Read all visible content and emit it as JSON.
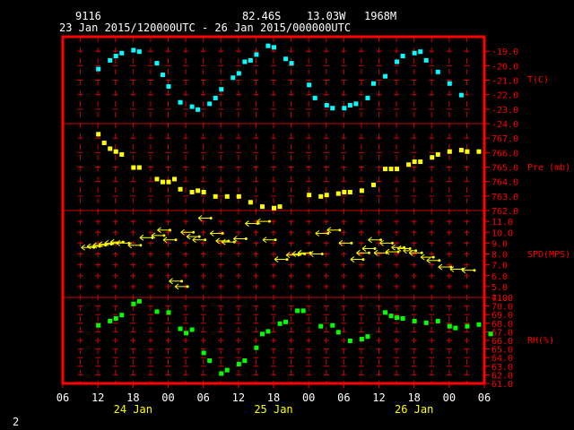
{
  "header": {
    "station": "9116",
    "lat": "82.46S",
    "lon": "13.03W",
    "elevation": "1968M",
    "period": "23 Jan 2015/120000UTC - 26 Jan 2015/000000UTC"
  },
  "footer": {
    "page_number": "2"
  },
  "x_axis": {
    "tick_hours": [
      "06",
      "12",
      "18",
      "00",
      "06",
      "12",
      "18",
      "00",
      "06",
      "12",
      "18",
      "00",
      "06"
    ],
    "date_labels": [
      {
        "text": "24 Jan",
        "hours": 18
      },
      {
        "text": "25 Jan",
        "hours": 42
      },
      {
        "text": "26 Jan",
        "hours": 66
      }
    ]
  },
  "chart_data": [
    {
      "type": "scatter",
      "id": "temperature",
      "label": "T(C)",
      "color": "#00ffff",
      "x_unit": "hours since 23 Jan 2015 00 UTC",
      "xlim": [
        6,
        78
      ],
      "ylim": [
        -24.0,
        -18.0
      ],
      "tick_labels": [
        "-19.0",
        "-20.0",
        "-21.0",
        "-22.0",
        "-23.0",
        "-24.0"
      ],
      "tick_values": [
        -19,
        -20,
        -21,
        -22,
        -23,
        -24
      ],
      "points": [
        [
          12,
          -20.2
        ],
        [
          14,
          -19.6
        ],
        [
          15,
          -19.3
        ],
        [
          16,
          -19.1
        ],
        [
          18,
          -18.9
        ],
        [
          19,
          -19.0
        ],
        [
          22,
          -19.8
        ],
        [
          23,
          -20.6
        ],
        [
          24,
          -21.4
        ],
        [
          26,
          -22.5
        ],
        [
          28,
          -22.8
        ],
        [
          29,
          -23.0
        ],
        [
          31,
          -22.6
        ],
        [
          32,
          -22.2
        ],
        [
          33,
          -21.6
        ],
        [
          35,
          -20.8
        ],
        [
          36,
          -20.5
        ],
        [
          37,
          -19.7
        ],
        [
          38,
          -19.6
        ],
        [
          39,
          -19.2
        ],
        [
          41,
          -18.6
        ],
        [
          42,
          -18.7
        ],
        [
          44,
          -19.5
        ],
        [
          45,
          -19.8
        ],
        [
          48,
          -21.3
        ],
        [
          49,
          -22.2
        ],
        [
          51,
          -22.7
        ],
        [
          52,
          -22.9
        ],
        [
          54,
          -22.9
        ],
        [
          55,
          -22.7
        ],
        [
          56,
          -22.6
        ],
        [
          58,
          -22.2
        ],
        [
          59,
          -21.2
        ],
        [
          61,
          -20.7
        ],
        [
          63,
          -19.7
        ],
        [
          64,
          -19.3
        ],
        [
          66,
          -19.1
        ],
        [
          67,
          -19.0
        ],
        [
          68,
          -19.6
        ],
        [
          70,
          -20.4
        ],
        [
          72,
          -21.2
        ],
        [
          74,
          -22.0
        ]
      ]
    },
    {
      "type": "scatter",
      "id": "pressure",
      "label": "Pre (mb)",
      "color": "#ffff00",
      "x_unit": "hours since 23 Jan 2015 00 UTC",
      "xlim": [
        6,
        78
      ],
      "ylim": [
        762.0,
        768.0
      ],
      "tick_labels": [
        "767.0",
        "766.0",
        "765.0",
        "764.0",
        "763.0",
        "762.0"
      ],
      "tick_values": [
        767,
        766,
        765,
        764,
        763,
        762
      ],
      "points": [
        [
          12,
          767.3
        ],
        [
          13,
          766.7
        ],
        [
          14,
          766.3
        ],
        [
          15,
          766.1
        ],
        [
          16,
          765.9
        ],
        [
          18,
          765.0
        ],
        [
          19,
          765.0
        ],
        [
          22,
          764.2
        ],
        [
          23,
          764.0
        ],
        [
          24,
          764.0
        ],
        [
          25,
          764.2
        ],
        [
          26,
          763.5
        ],
        [
          28,
          763.3
        ],
        [
          29,
          763.4
        ],
        [
          30,
          763.3
        ],
        [
          32,
          763.0
        ],
        [
          34,
          763.0
        ],
        [
          36,
          763.0
        ],
        [
          38,
          762.6
        ],
        [
          40,
          762.3
        ],
        [
          42,
          762.2
        ],
        [
          43,
          762.3
        ],
        [
          48,
          763.1
        ],
        [
          50,
          763.0
        ],
        [
          51,
          763.1
        ],
        [
          53,
          763.2
        ],
        [
          54,
          763.3
        ],
        [
          55,
          763.3
        ],
        [
          57,
          763.4
        ],
        [
          59,
          763.8
        ],
        [
          61,
          764.9
        ],
        [
          62,
          764.9
        ],
        [
          63,
          764.9
        ],
        [
          65,
          765.2
        ],
        [
          66,
          765.4
        ],
        [
          67,
          765.4
        ],
        [
          69,
          765.7
        ],
        [
          70,
          765.9
        ],
        [
          72,
          766.1
        ],
        [
          74,
          766.2
        ],
        [
          75,
          766.1
        ],
        [
          77,
          766.1
        ]
      ]
    },
    {
      "type": "scatter",
      "id": "wind",
      "label": "SPD(MPS)",
      "color": "#ffff00",
      "marker": "wind-barb",
      "x_unit": "hours since 23 Jan 2015 00 UTC",
      "xlim": [
        6,
        78
      ],
      "ylim": [
        4.0,
        12.0
      ],
      "tick_labels": [
        "11.0",
        "10.0",
        "9.0",
        "8.0",
        "7.0",
        "6.0",
        "5.0",
        "4.0"
      ],
      "tick_values": [
        11,
        10,
        9,
        8,
        7,
        6,
        5,
        4
      ],
      "points": [
        [
          11,
          8.6
        ],
        [
          12,
          8.7
        ],
        [
          13,
          8.8
        ],
        [
          14,
          8.9
        ],
        [
          15,
          9.0
        ],
        [
          16,
          9.1
        ],
        [
          17,
          9.0
        ],
        [
          19,
          8.8
        ],
        [
          21,
          9.5
        ],
        [
          23,
          9.7
        ],
        [
          24,
          10.2
        ],
        [
          25,
          9.3
        ],
        [
          26,
          5.5
        ],
        [
          27,
          5.0
        ],
        [
          28,
          10.0
        ],
        [
          29,
          9.6
        ],
        [
          30,
          9.3
        ],
        [
          31,
          11.3
        ],
        [
          33,
          9.9
        ],
        [
          34,
          9.2
        ],
        [
          35,
          9.1
        ],
        [
          37,
          9.4
        ],
        [
          39,
          10.8
        ],
        [
          41,
          11.0
        ],
        [
          42,
          9.3
        ],
        [
          44,
          7.5
        ],
        [
          46,
          7.9
        ],
        [
          47,
          8.0
        ],
        [
          48,
          8.1
        ],
        [
          50,
          8.0
        ],
        [
          51,
          9.9
        ],
        [
          53,
          10.2
        ],
        [
          55,
          9.0
        ],
        [
          57,
          7.5
        ],
        [
          58,
          8.1
        ],
        [
          59,
          8.5
        ],
        [
          60,
          9.3
        ],
        [
          61,
          8.1
        ],
        [
          62,
          9.0
        ],
        [
          63,
          8.2
        ],
        [
          64,
          8.6
        ],
        [
          65,
          8.5
        ],
        [
          66,
          8.3
        ],
        [
          67,
          8.1
        ],
        [
          69,
          7.7
        ],
        [
          70,
          7.4
        ],
        [
          72,
          6.8
        ],
        [
          74,
          6.6
        ],
        [
          76,
          6.5
        ]
      ]
    },
    {
      "type": "scatter",
      "id": "humidity",
      "label": "RH(%)",
      "color": "#00ff00",
      "x_unit": "hours since 23 Jan 2015 00 UTC",
      "xlim": [
        6,
        78
      ],
      "ylim": [
        61.0,
        71.0
      ],
      "tick_labels": [
        "71.0",
        "70.0",
        "69.0",
        "68.0",
        "67.0",
        "66.0",
        "65.0",
        "64.0",
        "63.0",
        "62.0",
        "61.0"
      ],
      "tick_values": [
        71,
        70,
        69,
        68,
        67,
        66,
        65,
        64,
        63,
        62,
        61
      ],
      "points": [
        [
          12,
          67.8
        ],
        [
          14,
          68.3
        ],
        [
          15,
          68.6
        ],
        [
          16,
          69.0
        ],
        [
          18,
          70.3
        ],
        [
          19,
          70.6
        ],
        [
          22,
          69.4
        ],
        [
          24,
          69.3
        ],
        [
          26,
          67.4
        ],
        [
          27,
          66.9
        ],
        [
          28,
          67.3
        ],
        [
          30,
          64.6
        ],
        [
          31,
          63.7
        ],
        [
          33,
          62.2
        ],
        [
          34,
          62.6
        ],
        [
          36,
          63.3
        ],
        [
          37,
          63.7
        ],
        [
          39,
          65.2
        ],
        [
          40,
          66.8
        ],
        [
          41,
          67.1
        ],
        [
          43,
          68.0
        ],
        [
          44,
          68.2
        ],
        [
          46,
          69.5
        ],
        [
          47,
          69.5
        ],
        [
          50,
          67.7
        ],
        [
          52,
          67.8
        ],
        [
          53,
          67.0
        ],
        [
          55,
          66.0
        ],
        [
          57,
          66.2
        ],
        [
          58,
          66.5
        ],
        [
          61,
          69.3
        ],
        [
          62,
          68.9
        ],
        [
          63,
          68.7
        ],
        [
          64,
          68.6
        ],
        [
          66,
          68.3
        ],
        [
          68,
          68.1
        ],
        [
          70,
          68.3
        ],
        [
          72,
          67.7
        ],
        [
          73,
          67.5
        ],
        [
          75,
          67.7
        ],
        [
          77,
          67.9
        ],
        [
          79,
          66.8
        ]
      ]
    }
  ]
}
